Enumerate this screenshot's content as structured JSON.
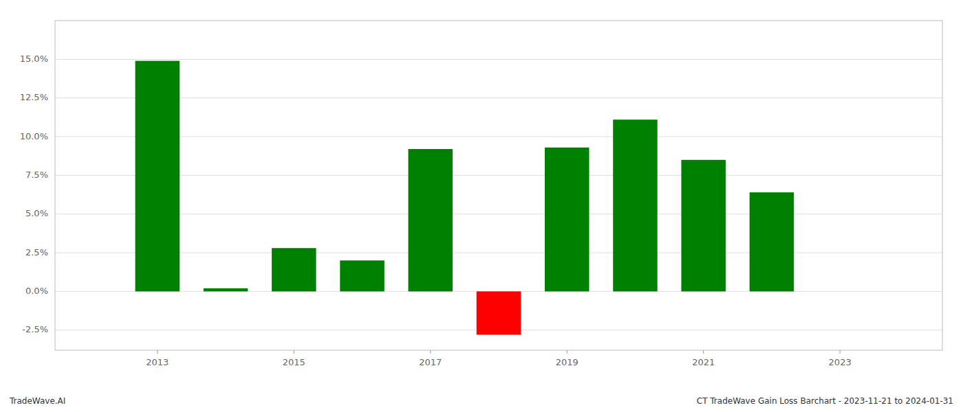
{
  "chart_data": {
    "type": "bar",
    "x": [
      2013,
      2014,
      2015,
      2016,
      2017,
      2018,
      2019,
      2020,
      2021,
      2022
    ],
    "values": [
      0.149,
      0.002,
      0.028,
      0.02,
      0.092,
      -0.028,
      0.093,
      0.111,
      0.085,
      0.064
    ],
    "colors": [
      "#008000",
      "#008000",
      "#008000",
      "#008000",
      "#008000",
      "#ff0000",
      "#008000",
      "#008000",
      "#008000",
      "#008000"
    ],
    "ylim": [
      -0.038,
      0.175
    ],
    "yticks": [
      {
        "value": -0.025,
        "label": "-2.5%"
      },
      {
        "value": 0.0,
        "label": "0.0%"
      },
      {
        "value": 0.025,
        "label": "2.5%"
      },
      {
        "value": 0.05,
        "label": "5.0%"
      },
      {
        "value": 0.075,
        "label": "7.5%"
      },
      {
        "value": 0.1,
        "label": "10.0%"
      },
      {
        "value": 0.125,
        "label": "12.5%"
      },
      {
        "value": 0.15,
        "label": "15.0%"
      }
    ],
    "xlim": [
      2011.5,
      2024.5
    ],
    "xticks": [
      2013,
      2015,
      2017,
      2019,
      2021,
      2023
    ],
    "grid": true,
    "annotations": [
      "TradeWave.AI",
      "CT TradeWave Gain Loss Barchart - 2023-11-21 to 2024-01-31"
    ]
  }
}
